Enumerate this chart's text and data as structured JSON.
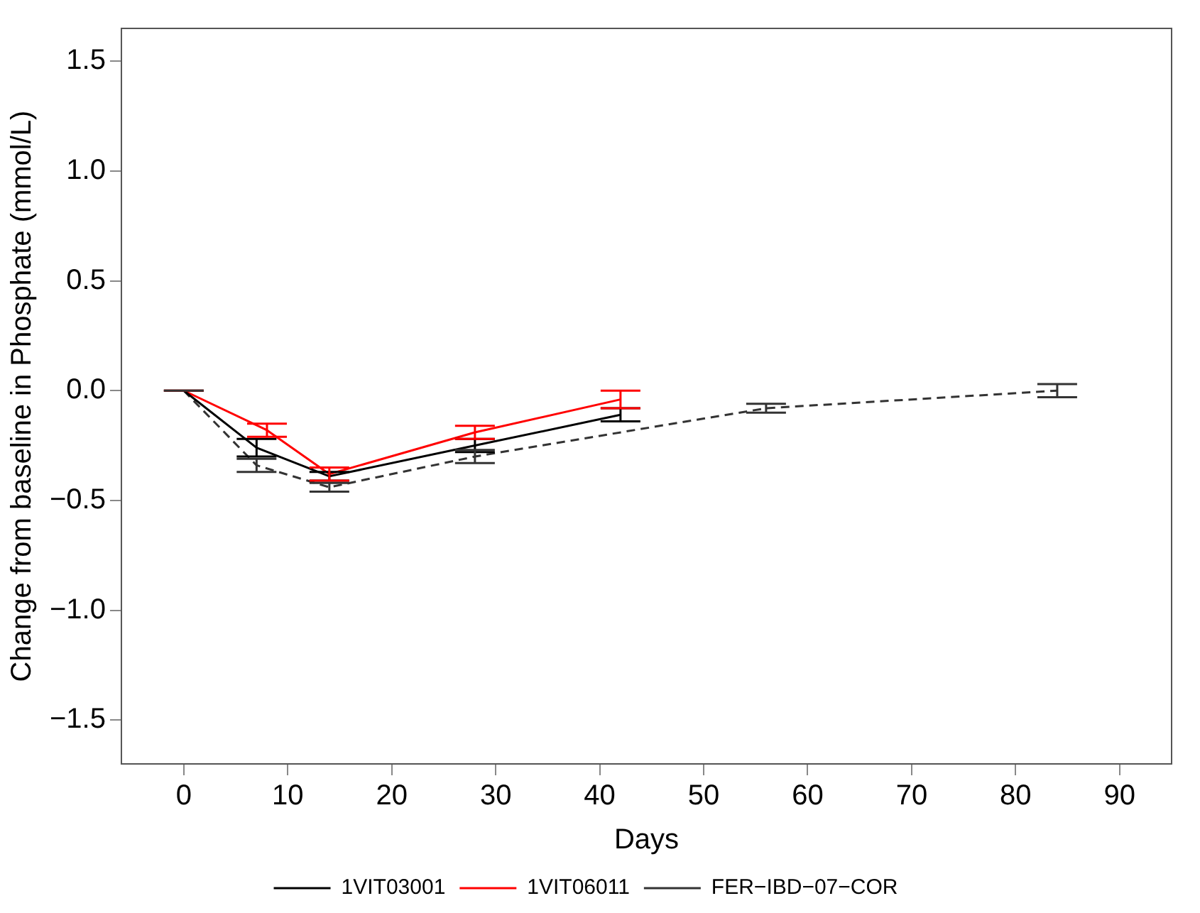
{
  "chart_data": {
    "type": "line",
    "xlabel": "Days",
    "ylabel": "Change from baseline in Phosphate (mmol/L)",
    "xlim": [
      -6,
      95
    ],
    "xticks": [
      0,
      10,
      20,
      30,
      40,
      50,
      60,
      70,
      80,
      90
    ],
    "ylim": [
      -1.7,
      1.65
    ],
    "yticks": [
      {
        "value": -1.5,
        "label": "−1.5"
      },
      {
        "value": -1,
        "label": "−1.0"
      },
      {
        "value": -0.5,
        "label": "−0.5"
      },
      {
        "value": 0,
        "label": "0.0"
      },
      {
        "value": 0.5,
        "label": "0.5"
      },
      {
        "value": 1,
        "label": "1.0"
      },
      {
        "value": 1.5,
        "label": "1.5"
      }
    ],
    "grid": false,
    "legend": "bottom",
    "marker": "none",
    "series": [
      {
        "name": "1VIT03001",
        "color": "#000000",
        "line_style": "solid",
        "x": [
          0,
          7,
          14,
          28,
          42
        ],
        "values": [
          0,
          -0.26,
          -0.39,
          -0.25,
          -0.11
        ],
        "errors": [
          0,
          0.04,
          0.02,
          0.03,
          0.03
        ]
      },
      {
        "name": "1VIT06011",
        "color": "#ff0000",
        "line_style": "solid",
        "x": [
          0,
          8,
          14,
          28,
          42
        ],
        "values": [
          0,
          -0.18,
          -0.38,
          -0.19,
          -0.04
        ],
        "errors": [
          0,
          0.03,
          0.03,
          0.03,
          0.04
        ]
      },
      {
        "name": "FER−IBD−07−COR",
        "color": "#333333",
        "line_style": "dashed",
        "x": [
          0,
          7,
          14,
          28,
          56,
          84
        ],
        "values": [
          0,
          -0.34,
          -0.44,
          -0.3,
          -0.08,
          0
        ],
        "errors": [
          0,
          0.03,
          0.02,
          0.03,
          0.02,
          0.03
        ]
      }
    ]
  }
}
